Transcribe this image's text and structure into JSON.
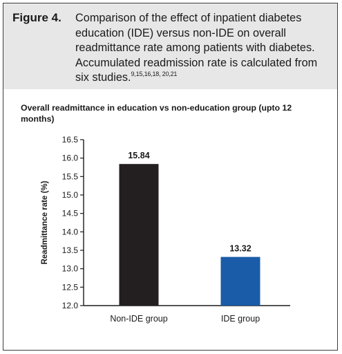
{
  "caption": {
    "label": "Figure 4.",
    "text": "Comparison of the effect of inpatient diabetes education (IDE) versus non-IDE on overall readmittance rate among patients with diabetes. Accumulated readmission rate is calculated from six studies.",
    "refs": "9,15,16,18, 20,21"
  },
  "colors": {
    "caption_bg": "#e7e7e7",
    "bar_non_ide": "#231f20",
    "bar_ide": "#1a5ca8"
  },
  "chart_data": {
    "type": "bar",
    "title": "Overall readmittance in education vs non-education group (upto 12 months)",
    "xlabel": "",
    "ylabel": "Readmittance rate (%)",
    "categories": [
      "Non-IDE group",
      "IDE group"
    ],
    "values": [
      15.84,
      13.32
    ],
    "data_labels": [
      "15.84",
      "13.32"
    ],
    "bar_colors": [
      "#231f20",
      "#1a5ca8"
    ],
    "ylim": [
      12.0,
      16.5
    ],
    "yticks": [
      "12.0",
      "12.5",
      "13.0",
      "13.5",
      "14.0",
      "14.5",
      "15.0",
      "15.5",
      "16.0",
      "16.5"
    ],
    "grid": false,
    "legend": "none"
  }
}
